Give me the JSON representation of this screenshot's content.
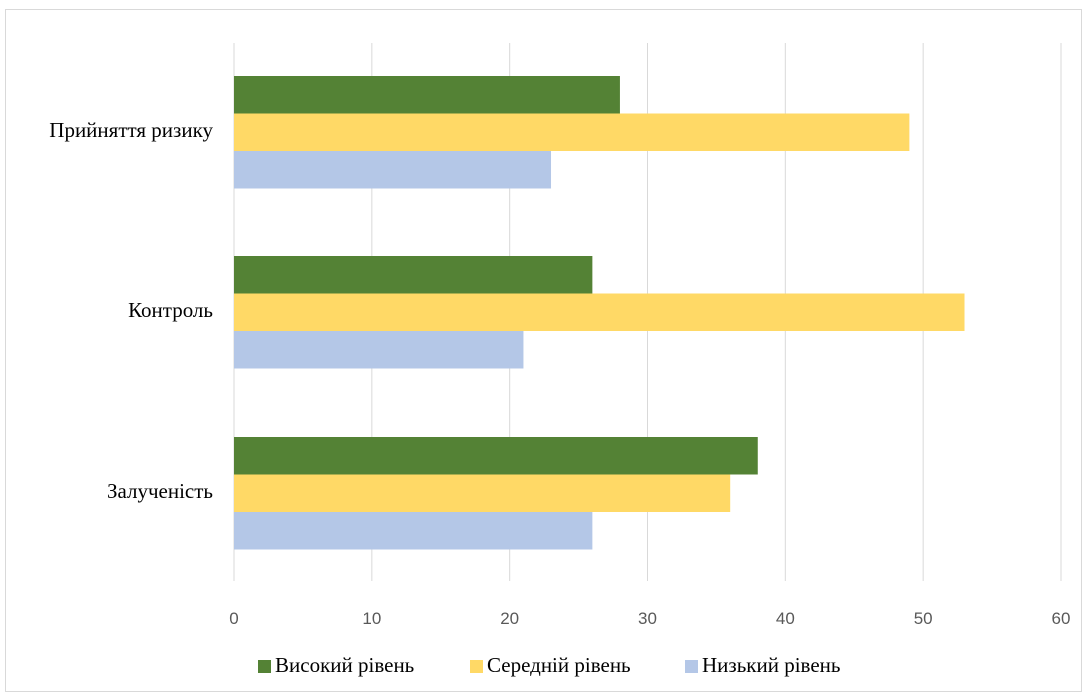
{
  "chart_data": {
    "type": "bar",
    "orientation": "horizontal",
    "categories": [
      "Прийняття ризику",
      "Контроль",
      "Залученість"
    ],
    "series": [
      {
        "name": "Високий рівень",
        "color": "#548235",
        "values": [
          28,
          26,
          38
        ]
      },
      {
        "name": "Середній рівень",
        "color": "#ffd966",
        "values": [
          49,
          53,
          36
        ]
      },
      {
        "name": "Низький рівень",
        "color": "#b4c7e7",
        "values": [
          23,
          21,
          26
        ]
      }
    ],
    "x_ticks": [
      "0",
      "10",
      "20",
      "30",
      "40",
      "50",
      "60"
    ],
    "xlim": [
      0,
      60
    ],
    "grid": "vertical",
    "legend_position": "bottom",
    "title": "",
    "xlabel": "",
    "ylabel": ""
  }
}
